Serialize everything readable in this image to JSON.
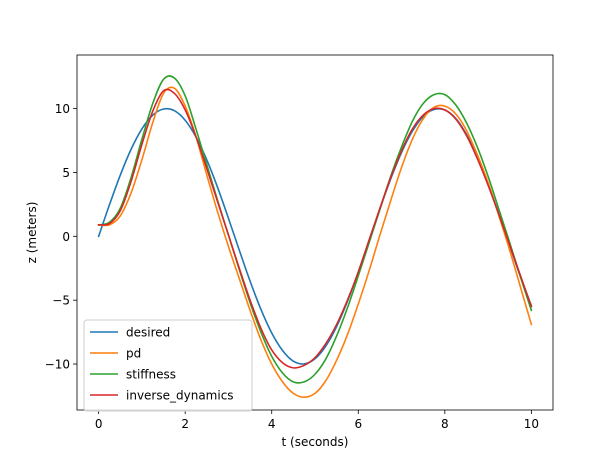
{
  "chart_data": {
    "type": "line",
    "xlabel": "t (seconds)",
    "ylabel": "z (meters)",
    "xlim": [
      -0.5,
      10.5
    ],
    "ylim": [
      -13.6,
      14.2
    ],
    "xticks": [
      0,
      2,
      4,
      6,
      8,
      10
    ],
    "yticks": [
      -10,
      -5,
      0,
      5,
      10
    ],
    "xtick_labels": [
      "0",
      "2",
      "4",
      "6",
      "8",
      "10"
    ],
    "ytick_labels": [
      "−10",
      "−5",
      "0",
      "5",
      "10"
    ],
    "grid": false,
    "legend": "lower-left",
    "x": [
      0.0,
      0.25,
      0.5,
      0.75,
      1.0,
      1.25,
      1.5,
      1.75,
      2.0,
      2.25,
      2.5,
      2.75,
      3.0,
      3.25,
      3.5,
      3.75,
      4.0,
      4.25,
      4.5,
      4.75,
      5.0,
      5.25,
      5.5,
      5.75,
      6.0,
      6.25,
      6.5,
      6.75,
      7.0,
      7.25,
      7.5,
      7.75,
      8.0,
      8.25,
      8.5,
      8.75,
      9.0,
      9.25,
      9.5,
      9.75,
      10.0
    ],
    "series": [
      {
        "name": "desired",
        "color": "#1f77b4",
        "values": [
          0.0,
          2.47,
          4.79,
          6.82,
          8.41,
          9.49,
          9.97,
          9.84,
          9.09,
          7.78,
          5.98,
          3.82,
          1.41,
          -1.08,
          -3.51,
          -5.72,
          -7.57,
          -8.94,
          -9.78,
          -9.99,
          -9.59,
          -8.59,
          -7.06,
          -5.09,
          -2.79,
          -0.32,
          2.15,
          4.5,
          6.57,
          8.23,
          9.38,
          9.93,
          9.89,
          9.24,
          7.98,
          6.24,
          4.12,
          1.74,
          -0.75,
          -3.19,
          -5.44
        ]
      },
      {
        "name": "pd",
        "color": "#ff7f0e",
        "values": [
          0.9,
          0.9,
          1.6,
          3.4,
          6.0,
          8.9,
          11.2,
          11.6,
          10.2,
          7.8,
          4.8,
          1.9,
          -0.8,
          -3.3,
          -5.8,
          -8.1,
          -10.0,
          -11.4,
          -12.3,
          -12.6,
          -12.3,
          -11.3,
          -9.7,
          -7.7,
          -5.3,
          -2.7,
          0.1,
          2.8,
          5.4,
          7.6,
          9.2,
          10.1,
          10.2,
          9.6,
          8.3,
          6.4,
          4.2,
          1.6,
          -1.1,
          -4.0,
          -6.9
        ]
      },
      {
        "name": "stiffness",
        "color": "#2ca02c",
        "values": [
          0.9,
          1.1,
          2.2,
          4.6,
          7.6,
          10.4,
          12.3,
          12.4,
          11.0,
          8.4,
          5.6,
          2.8,
          0.1,
          -2.6,
          -5.2,
          -7.5,
          -9.4,
          -10.7,
          -11.4,
          -11.4,
          -10.8,
          -9.6,
          -7.8,
          -5.6,
          -3.1,
          -0.5,
          2.1,
          4.7,
          7.0,
          9.0,
          10.4,
          11.1,
          11.1,
          10.3,
          8.9,
          7.0,
          4.7,
          2.1,
          -0.5,
          -3.2,
          -5.8
        ]
      },
      {
        "name": "inverse_dynamics",
        "color": "#d62728",
        "values": [
          0.9,
          1.0,
          2.0,
          4.3,
          7.2,
          9.8,
          11.4,
          11.2,
          9.9,
          7.8,
          5.3,
          2.7,
          0.1,
          -2.5,
          -5.0,
          -7.2,
          -8.9,
          -9.9,
          -10.3,
          -10.1,
          -9.5,
          -8.4,
          -6.9,
          -5.0,
          -2.8,
          -0.3,
          2.2,
          4.6,
          6.7,
          8.4,
          9.5,
          10.0,
          9.9,
          9.2,
          7.9,
          6.1,
          4.0,
          1.7,
          -0.7,
          -3.1,
          -5.5
        ]
      }
    ]
  }
}
